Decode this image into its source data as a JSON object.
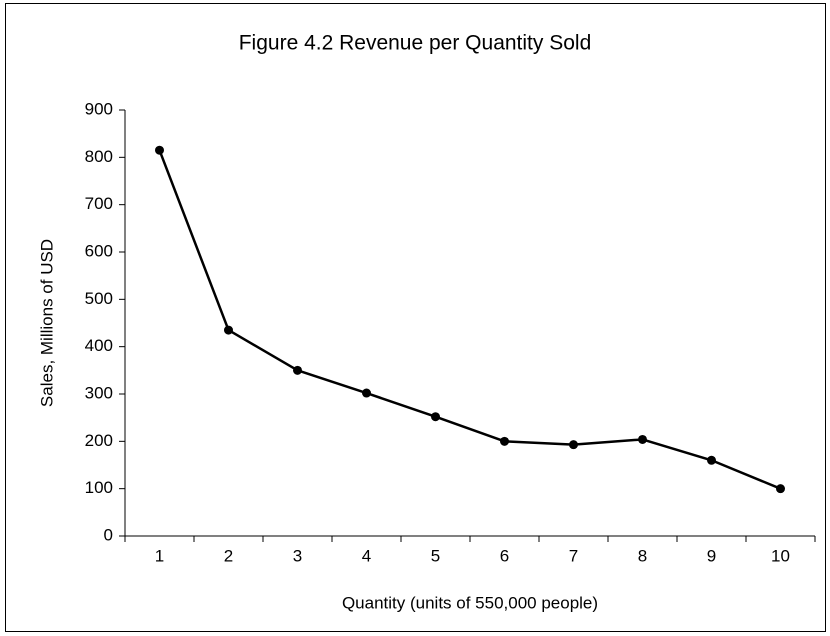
{
  "chart_data": {
    "type": "line",
    "title": "Figure 4.2 Revenue per Quantity Sold",
    "x_label": "Quantity (units of 550,000 people)",
    "y_label": "Sales, Millions of USD",
    "categories": [
      "1",
      "2",
      "3",
      "4",
      "5",
      "6",
      "7",
      "8",
      "9",
      "10"
    ],
    "series": [
      {
        "name": "Sales",
        "color": "#000000",
        "values": [
          815,
          435,
          350,
          302,
          252,
          200,
          193,
          204,
          160,
          100
        ]
      }
    ],
    "ylim": [
      0,
      900
    ],
    "yticks": [
      0,
      100,
      200,
      300,
      400,
      500,
      600,
      700,
      800,
      900
    ],
    "grid": false,
    "legend": false
  }
}
